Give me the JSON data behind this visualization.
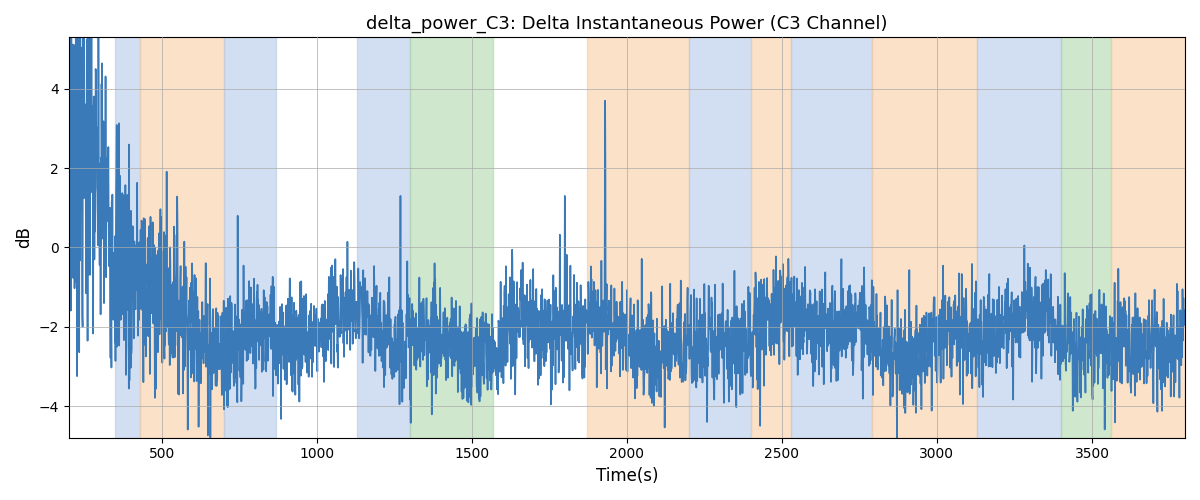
{
  "title": "delta_power_C3: Delta Instantaneous Power (C3 Channel)",
  "xlabel": "Time(s)",
  "ylabel": "dB",
  "xlim": [
    200,
    3800
  ],
  "ylim": [
    -4.8,
    5.3
  ],
  "yticks": [
    -4,
    -2,
    0,
    2,
    4
  ],
  "xticks": [
    500,
    1000,
    1500,
    2000,
    2500,
    3000,
    3500
  ],
  "line_color": "#3a7ab8",
  "line_width": 1.2,
  "bands": [
    {
      "xmin": 350,
      "xmax": 430,
      "color": "#aec6e8",
      "alpha": 0.55
    },
    {
      "xmin": 430,
      "xmax": 700,
      "color": "#f7c99a",
      "alpha": 0.55
    },
    {
      "xmin": 700,
      "xmax": 870,
      "color": "#aec6e8",
      "alpha": 0.55
    },
    {
      "xmin": 870,
      "xmax": 1130,
      "color": "#f7c99a",
      "alpha": 0.0
    },
    {
      "xmin": 1130,
      "xmax": 1300,
      "color": "#aec6e8",
      "alpha": 0.55
    },
    {
      "xmin": 1300,
      "xmax": 1570,
      "color": "#a8d5a2",
      "alpha": 0.55
    },
    {
      "xmin": 1870,
      "xmax": 2200,
      "color": "#f7c99a",
      "alpha": 0.55
    },
    {
      "xmin": 2200,
      "xmax": 2400,
      "color": "#aec6e8",
      "alpha": 0.55
    },
    {
      "xmin": 2400,
      "xmax": 2530,
      "color": "#f7c99a",
      "alpha": 0.55
    },
    {
      "xmin": 2530,
      "xmax": 2790,
      "color": "#aec6e8",
      "alpha": 0.55
    },
    {
      "xmin": 2790,
      "xmax": 3130,
      "color": "#f7c99a",
      "alpha": 0.55
    },
    {
      "xmin": 3130,
      "xmax": 3400,
      "color": "#aec6e8",
      "alpha": 0.55
    },
    {
      "xmin": 3400,
      "xmax": 3560,
      "color": "#a8d5a2",
      "alpha": 0.55
    },
    {
      "xmin": 3560,
      "xmax": 3800,
      "color": "#f7c99a",
      "alpha": 0.55
    }
  ]
}
